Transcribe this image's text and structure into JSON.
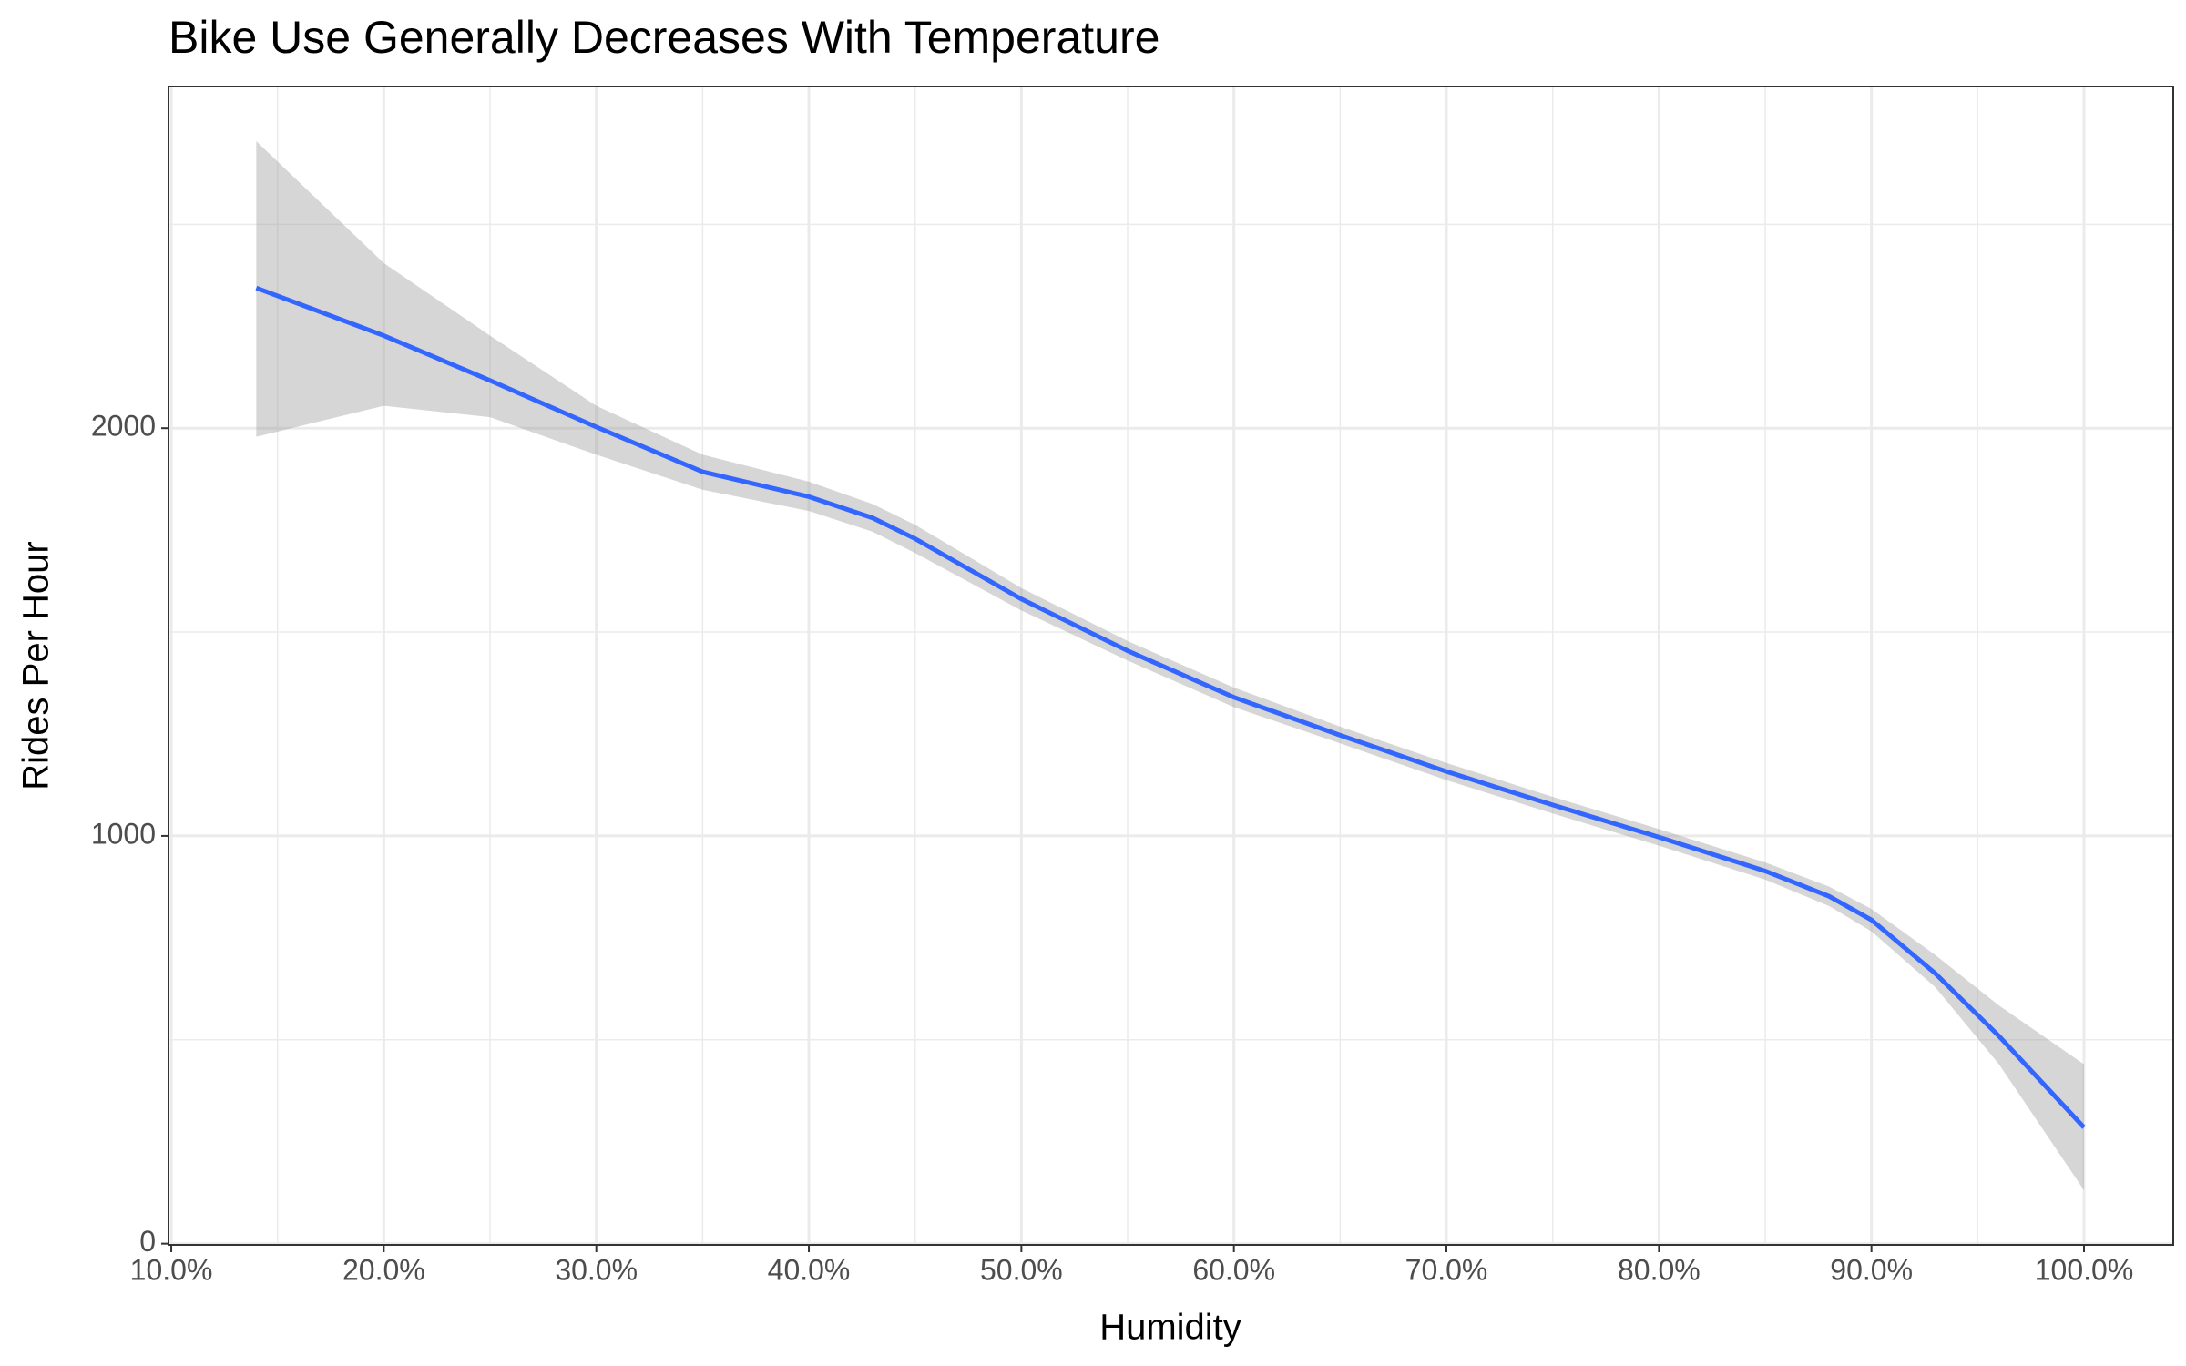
{
  "chart_data": {
    "type": "line",
    "title": "Bike Use Generally Decreases With Temperature",
    "x_label": "Humidity",
    "y_label": "Rides Per Hour",
    "x": [
      14,
      20,
      25,
      30,
      35,
      40,
      43,
      45,
      50,
      55,
      60,
      65,
      70,
      75,
      80,
      85,
      88,
      90,
      93,
      96,
      100
    ],
    "series": [
      {
        "color": "#3366ff",
        "band_color": "#999999",
        "values": [
          2344,
          2227,
          2117,
          2003,
          1893,
          1832,
          1780,
          1729,
          1581,
          1454,
          1340,
          1247,
          1158,
          1076,
          997,
          914,
          852,
          794,
          663,
          509,
          285
        ],
        "band_upper": [
          2704,
          2405,
          2227,
          2055,
          1935,
          1869,
          1814,
          1763,
          1608,
          1478,
          1364,
          1268,
          1179,
          1096,
          1017,
          935,
          876,
          821,
          708,
          584,
          440
        ],
        "band_lower": [
          1979,
          2055,
          2027,
          1935,
          1849,
          1797,
          1746,
          1694,
          1553,
          1430,
          1316,
          1227,
          1137,
          1055,
          976,
          893,
          828,
          766,
          629,
          440,
          131
        ]
      }
    ],
    "xlim": [
      9.87,
      104.2
    ],
    "ylim": [
      -3,
      2838
    ],
    "xticks": [
      {
        "value": 10,
        "label": "10.0%"
      },
      {
        "value": 20,
        "label": "20.0%"
      },
      {
        "value": 30,
        "label": "30.0%"
      },
      {
        "value": 40,
        "label": "40.0%"
      },
      {
        "value": 50,
        "label": "50.0%"
      },
      {
        "value": 60,
        "label": "60.0%"
      },
      {
        "value": 70,
        "label": "70.0%"
      },
      {
        "value": 80,
        "label": "80.0%"
      },
      {
        "value": 90,
        "label": "90.0%"
      },
      {
        "value": 100,
        "label": "100.0%"
      }
    ],
    "yticks": [
      0,
      1000,
      2000
    ],
    "x_minor_grid": [
      15,
      25,
      35,
      45,
      55,
      65,
      75,
      85,
      95
    ],
    "y_minor_grid": [
      500,
      1500,
      2500
    ],
    "grid": true
  }
}
